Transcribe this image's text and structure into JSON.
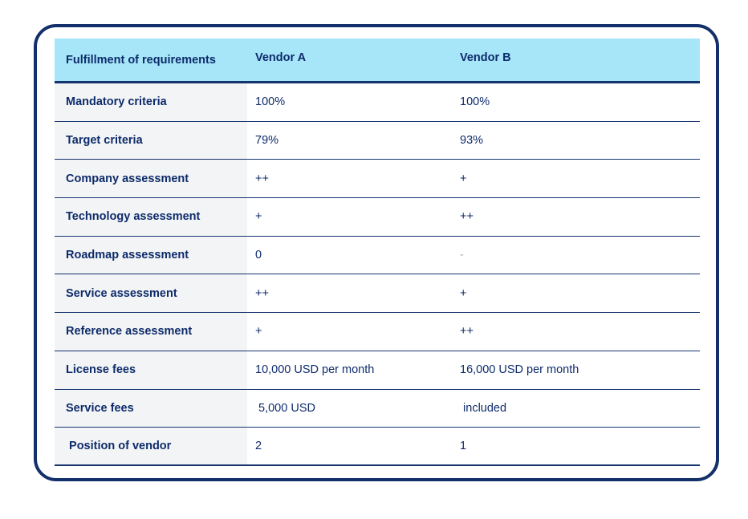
{
  "chart_data": {
    "type": "table",
    "columns": [
      "Fulfillment of requirements",
      "Vendor A",
      "Vendor B"
    ],
    "rows": [
      {
        "label": "Mandatory criteria",
        "vendor_a": "100%",
        "vendor_b": "100%"
      },
      {
        "label": "Target criteria",
        "vendor_a": "79%",
        "vendor_b": "93%"
      },
      {
        "label": "Company assessment",
        "vendor_a": "++",
        "vendor_b": "+"
      },
      {
        "label": "Technology assessment",
        "vendor_a": "+",
        "vendor_b": "++"
      },
      {
        "label": "Roadmap assessment",
        "vendor_a": "0",
        "vendor_b": "-"
      },
      {
        "label": "Service assessment",
        "vendor_a": "++",
        "vendor_b": "+"
      },
      {
        "label": "Reference assessment",
        "vendor_a": "+",
        "vendor_b": "++"
      },
      {
        "label": "License fees",
        "vendor_a": "10,000 USD per month",
        "vendor_b": "16,000 USD per month"
      },
      {
        "label": "Service fees",
        "vendor_a": " 5,000 USD",
        "vendor_b": " included"
      },
      {
        "label": " Position of vendor",
        "vendor_a": "2",
        "vendor_b": "1"
      }
    ]
  },
  "colors": {
    "header_bg": "#a6e6f8",
    "label_column_bg": "#f3f4f5",
    "text_navy": "#0d2b6b",
    "line_navy": "#15336d",
    "card_border": "#13306b",
    "muted_value": "#a5b3c3"
  }
}
